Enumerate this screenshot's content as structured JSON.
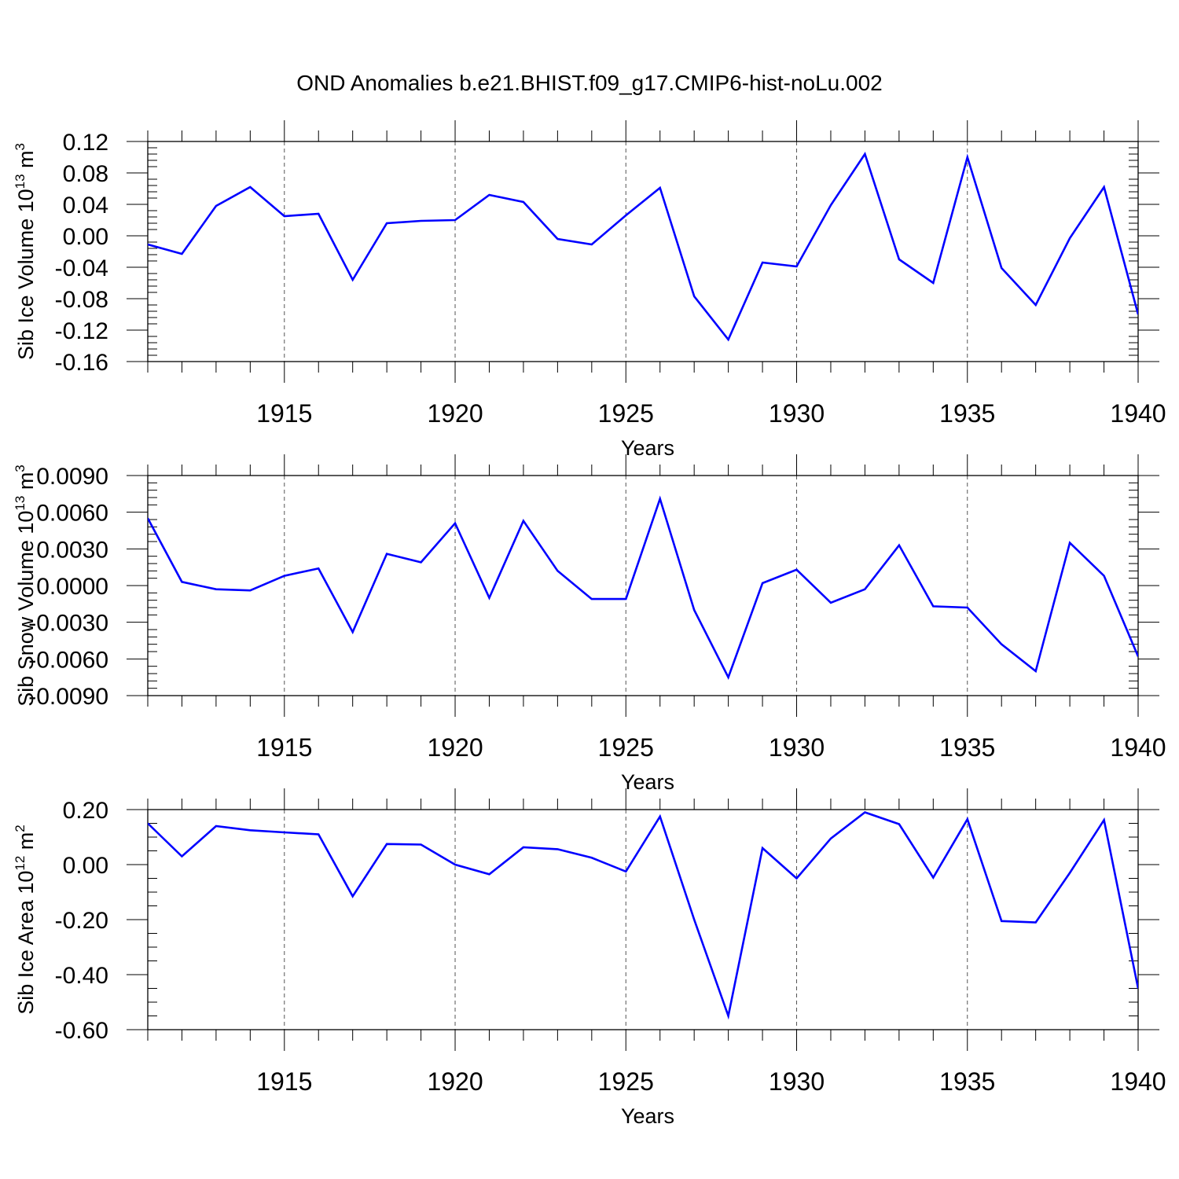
{
  "title": "OND Anomalies b.e21.BHIST.f09_g17.CMIP6-hist-noLu.002",
  "chart_data": [
    {
      "type": "line",
      "xlabel": "Years",
      "ylabel": "Sib Ice Volume 10",
      "ylabel_exp": "13",
      "ylabel_unit": " m",
      "ylabel_unit_exp": "3",
      "xlim": [
        1911,
        1940
      ],
      "ylim": [
        -0.16,
        0.12
      ],
      "xticks": [
        1915,
        1920,
        1925,
        1930,
        1935,
        1940
      ],
      "xtick_labels": [
        "1915",
        "1920",
        "1925",
        "1930",
        "1935",
        "1940"
      ],
      "yticks": [
        0.12,
        0.08,
        0.04,
        0.0,
        -0.04,
        -0.08,
        -0.12,
        -0.16
      ],
      "ytick_labels": [
        "0.12",
        "0.08",
        "0.04",
        "0.00",
        "-0.04",
        "-0.08",
        "-0.12",
        "-0.16"
      ],
      "grid": "vertical dashed at labeled years",
      "series": [
        {
          "name": "Sib Ice Volume",
          "color": "#0000ff",
          "x": [
            1911,
            1912,
            1913,
            1914,
            1915,
            1916,
            1917,
            1918,
            1919,
            1920,
            1921,
            1922,
            1923,
            1924,
            1925,
            1926,
            1927,
            1928,
            1929,
            1930,
            1931,
            1932,
            1933,
            1934,
            1935,
            1936,
            1937,
            1938,
            1939,
            1940
          ],
          "values": [
            -0.011,
            -0.023,
            0.038,
            0.062,
            0.025,
            0.028,
            -0.056,
            0.016,
            0.019,
            0.02,
            0.052,
            0.043,
            -0.004,
            -0.011,
            0.026,
            0.061,
            -0.077,
            -0.132,
            -0.034,
            -0.039,
            0.039,
            0.104,
            -0.03,
            -0.06,
            0.1,
            -0.041,
            -0.088,
            -0.003,
            0.062,
            -0.1
          ]
        }
      ]
    },
    {
      "type": "line",
      "xlabel": "Years",
      "ylabel": "Sib Snow Volume 10",
      "ylabel_exp": "13",
      "ylabel_unit": " m",
      "ylabel_unit_exp": "3",
      "xlim": [
        1911,
        1940
      ],
      "ylim": [
        -0.009,
        0.009
      ],
      "xticks": [
        1915,
        1920,
        1925,
        1930,
        1935,
        1940
      ],
      "xtick_labels": [
        "1915",
        "1920",
        "1925",
        "1930",
        "1935",
        "1940"
      ],
      "yticks": [
        0.009,
        0.006,
        0.003,
        0.0,
        -0.003,
        -0.006,
        -0.009
      ],
      "ytick_labels": [
        "0.0090",
        "0.0060",
        "0.0030",
        "0.0000",
        "-0.0030",
        "-0.0060",
        "-0.0090"
      ],
      "grid": "vertical dashed at labeled years",
      "series": [
        {
          "name": "Sib Snow Volume",
          "color": "#0000ff",
          "x": [
            1911,
            1912,
            1913,
            1914,
            1915,
            1916,
            1917,
            1918,
            1919,
            1920,
            1921,
            1922,
            1923,
            1924,
            1925,
            1926,
            1927,
            1928,
            1929,
            1930,
            1931,
            1932,
            1933,
            1934,
            1935,
            1936,
            1937,
            1938,
            1939,
            1940
          ],
          "values": [
            0.0055,
            0.0003,
            -0.0003,
            -0.0004,
            0.0008,
            0.0014,
            -0.0038,
            0.0026,
            0.0019,
            0.0051,
            -0.001,
            0.0053,
            0.0012,
            -0.0011,
            -0.0011,
            0.0071,
            -0.002,
            -0.0075,
            0.0002,
            0.0013,
            -0.0014,
            -0.0003,
            0.0033,
            -0.0017,
            -0.0018,
            -0.0048,
            -0.007,
            0.0035,
            0.0008,
            -0.0058
          ]
        }
      ]
    },
    {
      "type": "line",
      "xlabel": "Years",
      "ylabel": "Sib Ice Area 10",
      "ylabel_exp": "12",
      "ylabel_unit": " m",
      "ylabel_unit_exp": "2",
      "xlim": [
        1911,
        1940
      ],
      "ylim": [
        -0.6,
        0.2
      ],
      "xticks": [
        1915,
        1920,
        1925,
        1930,
        1935,
        1940
      ],
      "xtick_labels": [
        "1915",
        "1920",
        "1925",
        "1930",
        "1935",
        "1940"
      ],
      "yticks": [
        0.2,
        0.0,
        -0.2,
        -0.4,
        -0.6
      ],
      "ytick_labels": [
        "0.20",
        "0.00",
        "-0.20",
        "-0.40",
        "-0.60"
      ],
      "grid": "vertical dashed at labeled years",
      "series": [
        {
          "name": "Sib Ice Area",
          "color": "#0000ff",
          "x": [
            1911,
            1912,
            1913,
            1914,
            1915,
            1916,
            1917,
            1918,
            1919,
            1920,
            1921,
            1922,
            1923,
            1924,
            1925,
            1926,
            1927,
            1928,
            1929,
            1930,
            1931,
            1932,
            1933,
            1934,
            1935,
            1936,
            1937,
            1938,
            1939,
            1940
          ],
          "values": [
            0.15,
            0.03,
            0.14,
            0.125,
            0.117,
            0.11,
            -0.115,
            0.075,
            0.073,
            0.0,
            -0.035,
            0.063,
            0.056,
            0.025,
            -0.025,
            0.175,
            -0.2,
            -0.55,
            0.06,
            -0.05,
            0.095,
            0.19,
            0.147,
            -0.047,
            0.165,
            -0.205,
            -0.21,
            -0.03,
            0.162,
            -0.45
          ]
        }
      ]
    }
  ]
}
